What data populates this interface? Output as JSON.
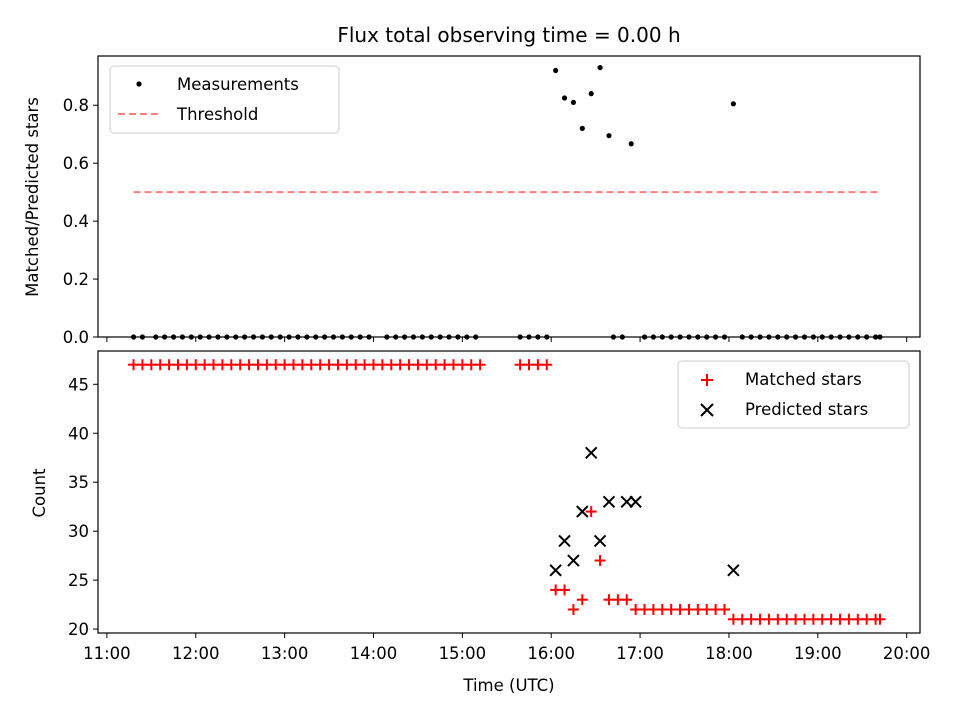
{
  "chart_data": [
    {
      "type": "scatter",
      "title": "Flux total observing time = 0.00 h",
      "ylabel": "Matched/Predicted stars",
      "ylim": [
        0,
        0.97
      ],
      "xlim": [
        "10:54",
        "20:09"
      ],
      "yticks": [
        "0.0",
        "0.2",
        "0.4",
        "0.6",
        "0.8"
      ],
      "ytick_values": [
        0,
        0.2,
        0.4,
        0.6,
        0.8
      ],
      "legend": "upper left",
      "series": [
        {
          "name": "Measurements",
          "color": "#000000",
          "marker": "dot",
          "x": [
            "11:18",
            "11:24",
            "11:33",
            "11:39",
            "11:45",
            "11:51",
            "11:57",
            "12:03",
            "12:09",
            "12:15",
            "12:21",
            "12:27",
            "12:33",
            "12:39",
            "12:45",
            "12:51",
            "12:57",
            "13:03",
            "13:09",
            "13:15",
            "13:21",
            "13:27",
            "13:33",
            "13:39",
            "13:45",
            "13:51",
            "13:57",
            "14:09",
            "14:15",
            "14:21",
            "14:27",
            "14:33",
            "14:39",
            "14:45",
            "14:51",
            "14:57",
            "15:03",
            "15:09",
            "15:39",
            "15:45",
            "15:51",
            "15:57",
            "16:03",
            "16:09",
            "16:15",
            "16:21",
            "16:27",
            "16:33",
            "16:39",
            "16:42",
            "16:48",
            "16:54",
            "17:03",
            "17:09",
            "17:15",
            "17:21",
            "17:27",
            "17:33",
            "17:39",
            "17:45",
            "17:51",
            "17:57",
            "18:03",
            "18:09",
            "18:15",
            "18:21",
            "18:27",
            "18:33",
            "18:39",
            "18:45",
            "18:51",
            "18:57",
            "19:03",
            "19:09",
            "19:15",
            "19:21",
            "19:27",
            "19:33",
            "19:39",
            "19:42"
          ],
          "y": [
            0,
            0,
            0,
            0,
            0,
            0,
            0,
            0,
            0,
            0,
            0,
            0,
            0,
            0,
            0,
            0,
            0,
            0,
            0,
            0,
            0,
            0,
            0,
            0,
            0,
            0,
            0,
            0,
            0,
            0,
            0,
            0,
            0,
            0,
            0,
            0,
            0,
            0,
            0,
            0,
            0,
            0,
            0.92,
            0.825,
            0.81,
            0.72,
            0.84,
            0.93,
            0.695,
            0,
            0,
            0.667,
            0,
            0,
            0,
            0,
            0,
            0,
            0,
            0,
            0,
            0,
            0.805,
            0,
            0,
            0,
            0,
            0,
            0,
            0,
            0,
            0,
            0,
            0,
            0,
            0,
            0,
            0,
            0,
            0
          ]
        },
        {
          "name": "Threshold",
          "color": "#ff7f7f",
          "style": "dashed",
          "x": [
            "11:18",
            "19:42"
          ],
          "y": [
            0.5,
            0.5
          ]
        }
      ]
    },
    {
      "type": "scatter",
      "xlabel": "Time (UTC)",
      "ylabel": "Count",
      "ylim": [
        19.6,
        48.4
      ],
      "xlim": [
        "10:54",
        "20:09"
      ],
      "xticks": [
        "11:00",
        "12:00",
        "13:00",
        "14:00",
        "15:00",
        "16:00",
        "17:00",
        "18:00",
        "19:00",
        "20:00"
      ],
      "yticks": [
        "20",
        "25",
        "30",
        "35",
        "40",
        "45"
      ],
      "ytick_values": [
        20,
        25,
        30,
        35,
        40,
        45
      ],
      "legend": "upper right",
      "series": [
        {
          "name": "Matched stars",
          "color": "#ff0000",
          "marker": "plus",
          "x": [
            "11:18",
            "11:24",
            "11:30",
            "11:36",
            "11:42",
            "11:48",
            "11:54",
            "12:00",
            "12:06",
            "12:12",
            "12:18",
            "12:24",
            "12:30",
            "12:36",
            "12:42",
            "12:48",
            "12:54",
            "13:00",
            "13:06",
            "13:12",
            "13:18",
            "13:24",
            "13:30",
            "13:36",
            "13:42",
            "13:48",
            "13:54",
            "14:00",
            "14:06",
            "14:12",
            "14:18",
            "14:24",
            "14:30",
            "14:36",
            "14:42",
            "14:48",
            "14:54",
            "15:00",
            "15:06",
            "15:12",
            "15:39",
            "15:45",
            "15:51",
            "15:57",
            "16:03",
            "16:09",
            "16:15",
            "16:21",
            "16:27",
            "16:33",
            "16:39",
            "16:45",
            "16:51",
            "16:57",
            "17:03",
            "17:09",
            "17:15",
            "17:21",
            "17:27",
            "17:33",
            "17:39",
            "17:45",
            "17:51",
            "17:57",
            "18:03",
            "18:09",
            "18:15",
            "18:21",
            "18:27",
            "18:33",
            "18:39",
            "18:45",
            "18:51",
            "18:57",
            "19:03",
            "19:09",
            "19:15",
            "19:21",
            "19:27",
            "19:33",
            "19:39",
            "19:42"
          ],
          "y": [
            47,
            47,
            47,
            47,
            47,
            47,
            47,
            47,
            47,
            47,
            47,
            47,
            47,
            47,
            47,
            47,
            47,
            47,
            47,
            47,
            47,
            47,
            47,
            47,
            47,
            47,
            47,
            47,
            47,
            47,
            47,
            47,
            47,
            47,
            47,
            47,
            47,
            47,
            47,
            47,
            47,
            47,
            47,
            47,
            24,
            24,
            22,
            23,
            32,
            27,
            23,
            23,
            23,
            22,
            22,
            22,
            22,
            22,
            22,
            22,
            22,
            22,
            22,
            22,
            21,
            21,
            21,
            21,
            21,
            21,
            21,
            21,
            21,
            21,
            21,
            21,
            21,
            21,
            21,
            21,
            21,
            21
          ]
        },
        {
          "name": "Predicted stars",
          "color": "#000000",
          "marker": "x",
          "x": [
            "16:03",
            "16:09",
            "16:15",
            "16:21",
            "16:27",
            "16:33",
            "16:39",
            "16:51",
            "16:57",
            "18:03"
          ],
          "y": [
            26,
            29,
            27,
            32,
            38,
            29,
            33,
            33,
            33,
            26
          ]
        }
      ]
    }
  ]
}
